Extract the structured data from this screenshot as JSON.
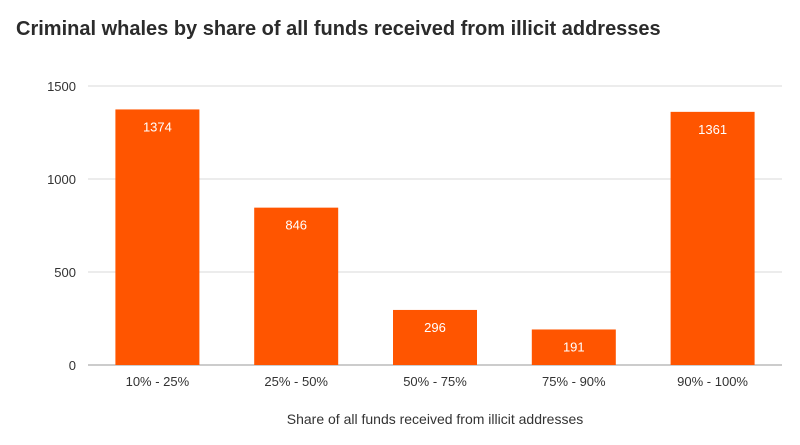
{
  "chart_data": {
    "type": "bar",
    "title": "Criminal whales by share of all funds received from illicit addresses",
    "xlabel": "Share of all funds received from illicit addresses",
    "ylabel": "",
    "categories": [
      "10% - 25%",
      "25% - 50%",
      "50% - 75%",
      "75% - 90%",
      "90% - 100%"
    ],
    "values": [
      1374,
      846,
      296,
      191,
      1361
    ],
    "ylim": [
      0,
      1500
    ],
    "yticks": [
      0,
      500,
      1000,
      1500
    ],
    "grid": true,
    "bar_color": "#ff5500",
    "gridline_color": "#d9d9d9"
  }
}
